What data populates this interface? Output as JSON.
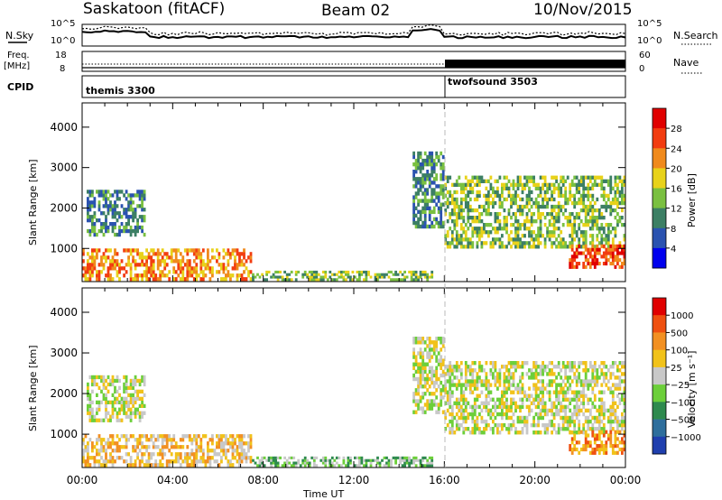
{
  "header": {
    "station": "Saskatoon (fitACF)",
    "beam": "Beam 02",
    "date": "10/Nov/2015"
  },
  "summary_panels": {
    "nsky_label": "N.Sky",
    "nsearch_label": "N.Search",
    "nsky_ticks": [
      "10^5",
      "10^0"
    ],
    "nsearch_ticks": [
      "10^5",
      "10^0"
    ],
    "freq_label_line1": "Freq.",
    "freq_label_line2": "[MHz]",
    "freq_ticks": [
      "18",
      "8"
    ],
    "nave_label": "Nave",
    "nave_ticks": [
      "60",
      "0"
    ],
    "cpid_label": "CPID",
    "cpid_segments": [
      {
        "name": "themis 3300",
        "start_hour": 0
      },
      {
        "name": "twofsound 3503",
        "start_hour": 16
      }
    ]
  },
  "chart_data": [
    {
      "type": "heatmap",
      "name": "power-panel",
      "ylabel": "Slant Range [km]",
      "xlabel": "",
      "y_ticks": [
        1000,
        2000,
        3000,
        4000
      ],
      "ylim": [
        180,
        4600
      ],
      "xlim": [
        0,
        24
      ],
      "colorbar": {
        "label": "Power [dB]",
        "ticks": [
          "28",
          "24",
          "20",
          "16",
          "12",
          "8",
          "4"
        ],
        "colors": [
          "#0000ee",
          "#2a52b0",
          "#3c7f64",
          "#7ac040",
          "#e8d21a",
          "#f08a1c",
          "#f23c10",
          "#e00000"
        ]
      },
      "regions": [
        {
          "t0": 0.2,
          "t1": 2.8,
          "r0": 1300,
          "r1": 2450,
          "level": 2
        },
        {
          "t0": 0.0,
          "t1": 7.5,
          "r0": 200,
          "r1": 1000,
          "level": 5
        },
        {
          "t0": 7.5,
          "t1": 15.5,
          "r0": 200,
          "r1": 450,
          "level": 3
        },
        {
          "t0": 14.6,
          "t1": 16.0,
          "r0": 1500,
          "r1": 3400,
          "level": 2
        },
        {
          "t0": 16.0,
          "t1": 24.0,
          "r0": 1000,
          "r1": 2800,
          "level": 3
        },
        {
          "t0": 21.5,
          "t1": 24.0,
          "r0": 500,
          "r1": 1100,
          "level": 6
        }
      ]
    },
    {
      "type": "heatmap",
      "name": "velocity-panel",
      "ylabel": "Slant Range [km]",
      "xlabel": "Time UT",
      "x_ticks": [
        "00:00",
        "04:00",
        "08:00",
        "12:00",
        "16:00",
        "20:00",
        "00:00"
      ],
      "y_ticks": [
        1000,
        2000,
        3000,
        4000
      ],
      "ylim": [
        180,
        4600
      ],
      "xlim": [
        0,
        24
      ],
      "colorbar": {
        "label": "Velocity [m s⁻¹]",
        "ticks": [
          "1000",
          "500",
          "100",
          "25",
          "−25",
          "−100",
          "−500",
          "−1000"
        ],
        "colors": [
          "#1f3fae",
          "#2e6e9c",
          "#2e8a4e",
          "#6ccf3a",
          "#c8c8c8",
          "#f1c21a",
          "#f29022",
          "#ef5010",
          "#e00000"
        ]
      },
      "regions": [
        {
          "t0": 0.2,
          "t1": 2.8,
          "r0": 1300,
          "r1": 2450,
          "level": 4
        },
        {
          "t0": 0.0,
          "t1": 7.5,
          "r0": 200,
          "r1": 1000,
          "level": 5
        },
        {
          "t0": 7.5,
          "t1": 15.5,
          "r0": 200,
          "r1": 450,
          "level": 3
        },
        {
          "t0": 14.6,
          "t1": 16.0,
          "r0": 1500,
          "r1": 3400,
          "level": 4
        },
        {
          "t0": 16.0,
          "t1": 24.0,
          "r0": 1000,
          "r1": 2800,
          "level": 4
        },
        {
          "t0": 21.5,
          "t1": 24.0,
          "r0": 500,
          "r1": 1100,
          "level": 6
        }
      ]
    }
  ]
}
